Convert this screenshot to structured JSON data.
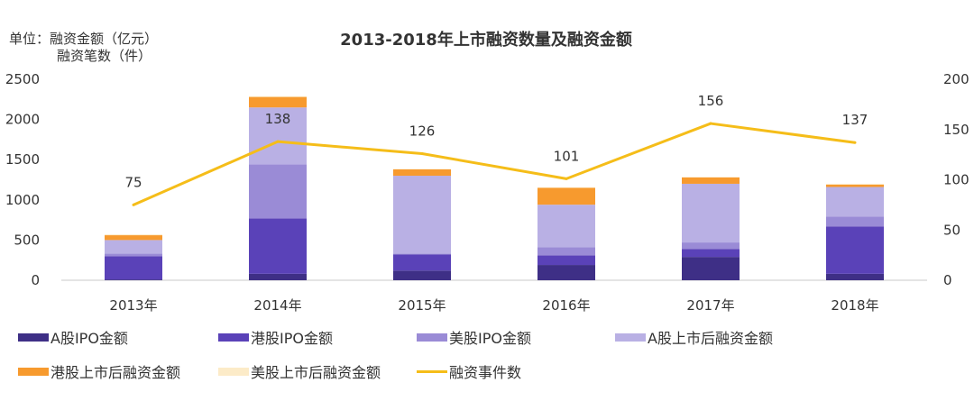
{
  "unit_label": {
    "line1": "单位：融资金额（亿元）",
    "line2": "融资笔数（件）"
  },
  "chart_data": {
    "type": "bar",
    "title": "2013-2018年上市融资数量及融资金额",
    "categories": [
      "2013年",
      "2014年",
      "2015年",
      "2016年",
      "2017年",
      "2018年"
    ],
    "stacked": true,
    "y_left": {
      "ylim": [
        0,
        2500
      ],
      "ticks": [
        "0",
        "500",
        "1000",
        "1500",
        "2000",
        "2500"
      ]
    },
    "y_right": {
      "ylim": [
        0,
        200
      ],
      "ticks": [
        "0",
        "50",
        "100",
        "150",
        "200"
      ]
    },
    "series": [
      {
        "name": "A股IPO金额",
        "color": "#3e2f86",
        "values": [
          10,
          80,
          120,
          190,
          290,
          80
        ]
      },
      {
        "name": "港股IPO金额",
        "color": "#5a42b8",
        "values": [
          290,
          690,
          200,
          120,
          100,
          590
        ]
      },
      {
        "name": "美股IPO金额",
        "color": "#9a8bd6",
        "values": [
          30,
          670,
          10,
          100,
          80,
          120
        ]
      },
      {
        "name": "A股上市后融资金额",
        "color": "#b9b0e4",
        "values": [
          170,
          710,
          970,
          530,
          730,
          370
        ]
      },
      {
        "name": "港股上市后融资金额",
        "color": "#f79a2e",
        "values": [
          60,
          130,
          80,
          210,
          80,
          30
        ]
      },
      {
        "name": "美股上市后融资金额",
        "color": "#fcebc8",
        "values": [
          10,
          10,
          5,
          5,
          5,
          10
        ]
      }
    ],
    "line_series": {
      "name": "融资事件数",
      "color": "#f5bd19",
      "axis": "right",
      "values": [
        75,
        138,
        126,
        101,
        156,
        137
      ],
      "labels": [
        "75",
        "138",
        "126",
        "101",
        "156",
        "137"
      ]
    },
    "legend_position": "bottom",
    "grid": false
  }
}
